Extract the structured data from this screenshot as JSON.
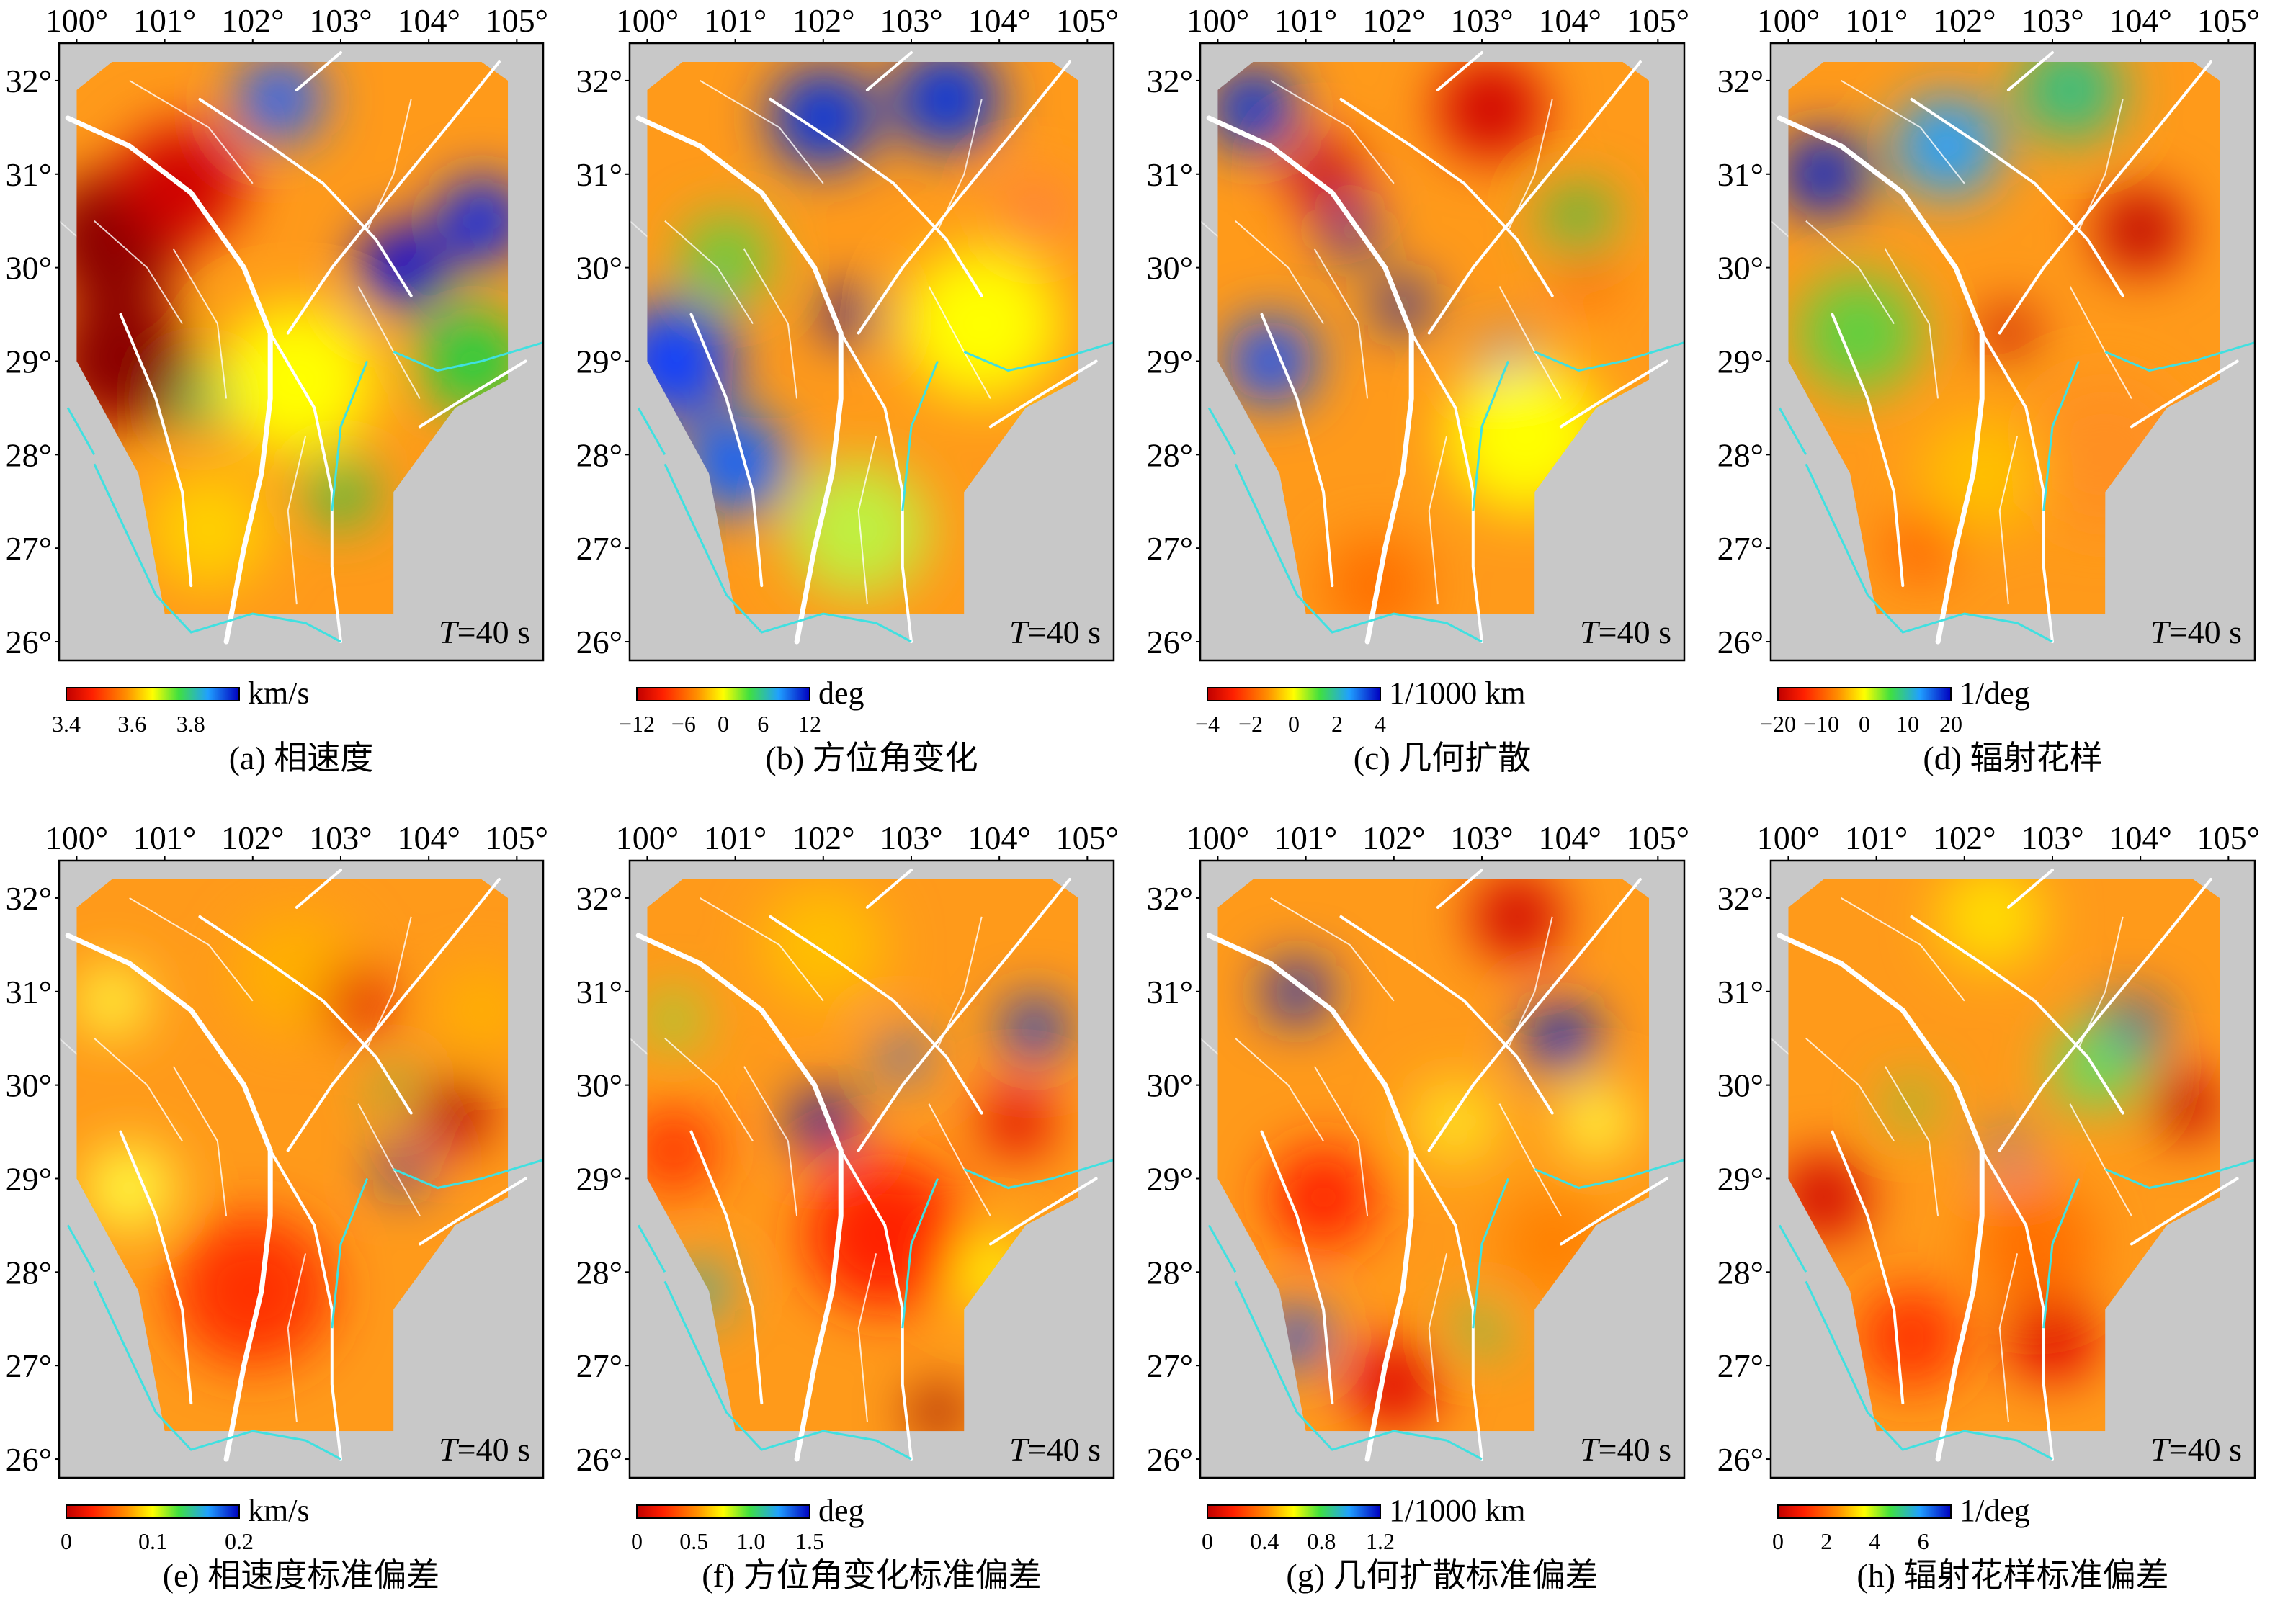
{
  "figure": {
    "panels": [
      {
        "id": "a",
        "caption": "(a) 相速度",
        "period_label": "T=40 s",
        "period_symbol": "T",
        "period_value": "=40 s",
        "colorbar": {
          "unit": "km/s",
          "ticks": [
            "3.4",
            "3.6",
            "3.8"
          ],
          "tick_fracs": [
            0.0,
            0.38,
            0.72
          ],
          "palette": "rainbow"
        },
        "blobs": [
          {
            "lon": 100.4,
            "lat": 30.3,
            "color": "#8b0000",
            "r": 0.8
          },
          {
            "lon": 100.5,
            "lat": 29.0,
            "color": "#8b0000",
            "r": 0.8
          },
          {
            "lon": 101.2,
            "lat": 30.9,
            "color": "#d00000",
            "r": 0.7
          },
          {
            "lon": 103.7,
            "lat": 30.0,
            "color": "#0000e0",
            "r": 0.5
          },
          {
            "lon": 104.6,
            "lat": 30.5,
            "color": "#0020f0",
            "r": 0.5
          },
          {
            "lon": 102.3,
            "lat": 31.8,
            "color": "#2060ff",
            "r": 0.5
          },
          {
            "lon": 104.5,
            "lat": 29.0,
            "color": "#20d040",
            "r": 0.6
          },
          {
            "lon": 102.5,
            "lat": 28.8,
            "color": "#ffff00",
            "r": 0.9
          },
          {
            "lon": 101.4,
            "lat": 28.6,
            "color": "#30c060",
            "r": 0.3
          },
          {
            "lon": 103.0,
            "lat": 27.6,
            "color": "#40c040",
            "r": 0.4
          },
          {
            "lon": 101.5,
            "lat": 27.2,
            "color": "#ffd000",
            "r": 0.7
          }
        ]
      },
      {
        "id": "b",
        "caption": "(b) 方位角变化",
        "period_label": "T=40 s",
        "period_symbol": "T",
        "period_value": "=40 s",
        "colorbar": {
          "unit": "deg",
          "ticks": [
            "−12",
            "−6",
            "0",
            "6",
            "12"
          ],
          "tick_fracs": [
            0.0,
            0.27,
            0.5,
            0.73,
            1.0
          ],
          "palette": "rainbow"
        },
        "blobs": [
          {
            "lon": 100.9,
            "lat": 30.1,
            "color": "#60d040",
            "r": 0.5
          },
          {
            "lon": 100.3,
            "lat": 29.0,
            "color": "#1040ff",
            "r": 0.7
          },
          {
            "lon": 101.0,
            "lat": 27.9,
            "color": "#1060ff",
            "r": 0.6
          },
          {
            "lon": 102.0,
            "lat": 31.6,
            "color": "#0030e0",
            "r": 0.6
          },
          {
            "lon": 103.4,
            "lat": 31.8,
            "color": "#0030e0",
            "r": 0.6
          },
          {
            "lon": 102.3,
            "lat": 29.5,
            "color": "#0000b0",
            "r": 0.3
          },
          {
            "lon": 104.4,
            "lat": 30.6,
            "color": "#ff8040",
            "r": 0.4
          },
          {
            "lon": 103.8,
            "lat": 29.4,
            "color": "#ffff00",
            "r": 0.9
          },
          {
            "lon": 102.4,
            "lat": 27.2,
            "color": "#c0f040",
            "r": 0.8
          }
        ]
      },
      {
        "id": "c",
        "caption": "(c) 几何扩散",
        "period_label": "T=40 s",
        "period_symbol": "T",
        "period_value": "=40 s",
        "colorbar": {
          "unit": "1/1000 km",
          "ticks": [
            "−4",
            "−2",
            "0",
            "2",
            "4"
          ],
          "tick_fracs": [
            0.0,
            0.25,
            0.5,
            0.75,
            1.0
          ],
          "palette": "rainbow"
        },
        "blobs": [
          {
            "lon": 100.4,
            "lat": 31.7,
            "color": "#0030e0",
            "r": 0.5
          },
          {
            "lon": 101.2,
            "lat": 31.0,
            "color": "#c00000",
            "r": 0.4
          },
          {
            "lon": 103.1,
            "lat": 31.7,
            "color": "#d00000",
            "r": 0.6
          },
          {
            "lon": 101.5,
            "lat": 30.4,
            "color": "#0020c0",
            "r": 0.3
          },
          {
            "lon": 102.1,
            "lat": 29.6,
            "color": "#0020c0",
            "r": 0.3
          },
          {
            "lon": 100.6,
            "lat": 29.0,
            "color": "#1050ff",
            "r": 0.5
          },
          {
            "lon": 103.3,
            "lat": 29.0,
            "color": "#2060ff",
            "r": 0.3
          },
          {
            "lon": 104.1,
            "lat": 30.5,
            "color": "#40c040",
            "r": 0.4
          },
          {
            "lon": 104.2,
            "lat": 29.9,
            "color": "#ff6000",
            "r": 0.3
          },
          {
            "lon": 101.8,
            "lat": 26.6,
            "color": "#ff7000",
            "r": 0.6
          },
          {
            "lon": 103.5,
            "lat": 28.2,
            "color": "#ffff00",
            "r": 0.9
          }
        ]
      },
      {
        "id": "d",
        "caption": "(d) 辐射花样",
        "period_label": "T=40 s",
        "period_symbol": "T",
        "period_value": "=40 s",
        "colorbar": {
          "unit": "1/deg",
          "ticks": [
            "−20",
            "−10",
            "0",
            "10",
            "20"
          ],
          "tick_fracs": [
            0.0,
            0.25,
            0.5,
            0.75,
            1.0
          ],
          "palette": "rainbow"
        },
        "blobs": [
          {
            "lon": 100.4,
            "lat": 31.0,
            "color": "#0020d0",
            "r": 0.5
          },
          {
            "lon": 101.8,
            "lat": 31.3,
            "color": "#20a0ff",
            "r": 0.6
          },
          {
            "lon": 103.2,
            "lat": 31.9,
            "color": "#30c080",
            "r": 0.6
          },
          {
            "lon": 104.0,
            "lat": 30.4,
            "color": "#c00000",
            "r": 0.5
          },
          {
            "lon": 102.5,
            "lat": 29.3,
            "color": "#c00000",
            "r": 0.3
          },
          {
            "lon": 100.8,
            "lat": 29.3,
            "color": "#60d040",
            "r": 0.7
          },
          {
            "lon": 101.5,
            "lat": 27.0,
            "color": "#ff6000",
            "r": 0.4
          },
          {
            "lon": 103.6,
            "lat": 28.0,
            "color": "#ff9020",
            "r": 0.9
          },
          {
            "lon": 102.2,
            "lat": 27.8,
            "color": "#ffc000",
            "r": 0.7
          }
        ]
      },
      {
        "id": "e",
        "caption": "(e) 相速度标准偏差",
        "period_label": "T=40 s",
        "period_symbol": "T",
        "period_value": "=40 s",
        "colorbar": {
          "unit": "km/s",
          "ticks": [
            "0",
            "0.1",
            "0.2"
          ],
          "tick_fracs": [
            0.0,
            0.5,
            1.0
          ],
          "palette": "rainbow"
        },
        "blobs": [
          {
            "lon": 103.6,
            "lat": 30.0,
            "color": "#20c060",
            "r": 0.2
          },
          {
            "lon": 103.7,
            "lat": 29.1,
            "color": "#0020d0",
            "r": 0.25
          },
          {
            "lon": 100.4,
            "lat": 30.9,
            "color": "#ffff40",
            "r": 0.4
          },
          {
            "lon": 100.6,
            "lat": 28.9,
            "color": "#ffff40",
            "r": 0.5
          },
          {
            "lon": 102.5,
            "lat": 31.2,
            "color": "#ffb000",
            "r": 0.7
          },
          {
            "lon": 104.6,
            "lat": 30.8,
            "color": "#ffb000",
            "r": 0.5
          },
          {
            "lon": 102.0,
            "lat": 27.8,
            "color": "#ff3000",
            "r": 0.9
          },
          {
            "lon": 104.3,
            "lat": 29.7,
            "color": "#b00000",
            "r": 0.4
          },
          {
            "lon": 103.2,
            "lat": 30.9,
            "color": "#e00000",
            "r": 0.4
          }
        ]
      },
      {
        "id": "f",
        "caption": "(f) 方位角变化标准偏差",
        "period_label": "T=40 s",
        "period_symbol": "T",
        "period_value": "=40 s",
        "colorbar": {
          "unit": "deg",
          "ticks": [
            "0",
            "0.5",
            "1.0",
            "1.5"
          ],
          "tick_fracs": [
            0.0,
            0.33,
            0.66,
            1.0
          ],
          "palette": "rainbow"
        },
        "blobs": [
          {
            "lon": 102.0,
            "lat": 29.6,
            "color": "#0000c0",
            "r": 0.35
          },
          {
            "lon": 102.9,
            "lat": 30.3,
            "color": "#2060ff",
            "r": 0.25
          },
          {
            "lon": 104.4,
            "lat": 30.6,
            "color": "#0030e0",
            "r": 0.35
          },
          {
            "lon": 100.3,
            "lat": 30.7,
            "color": "#80e040",
            "r": 0.3
          },
          {
            "lon": 100.6,
            "lat": 27.8,
            "color": "#20b0c0",
            "r": 0.3
          },
          {
            "lon": 102.0,
            "lat": 31.5,
            "color": "#ffc000",
            "r": 0.7
          },
          {
            "lon": 100.3,
            "lat": 29.3,
            "color": "#ff3000",
            "r": 0.5
          },
          {
            "lon": 102.7,
            "lat": 28.4,
            "color": "#ff2000",
            "r": 0.9
          },
          {
            "lon": 104.2,
            "lat": 29.6,
            "color": "#e00000",
            "r": 0.4
          },
          {
            "lon": 103.3,
            "lat": 26.5,
            "color": "#900000",
            "r": 0.3
          },
          {
            "lon": 103.9,
            "lat": 28.0,
            "color": "#ffff00",
            "r": 0.4
          }
        ]
      },
      {
        "id": "g",
        "caption": "(g) 几何扩散标准偏差",
        "period_label": "T=40 s",
        "period_symbol": "T",
        "period_value": "=40 s",
        "colorbar": {
          "unit": "1/1000 km",
          "ticks": [
            "0",
            "0.4",
            "0.8",
            "1.2"
          ],
          "tick_fracs": [
            0.0,
            0.33,
            0.66,
            1.0
          ],
          "palette": "rainbow"
        },
        "blobs": [
          {
            "lon": 100.9,
            "lat": 31.0,
            "color": "#0020d0",
            "r": 0.35
          },
          {
            "lon": 103.9,
            "lat": 30.5,
            "color": "#0020d0",
            "r": 0.4
          },
          {
            "lon": 100.9,
            "lat": 27.3,
            "color": "#1050ff",
            "r": 0.35
          },
          {
            "lon": 103.0,
            "lat": 27.4,
            "color": "#40d060",
            "r": 0.25
          },
          {
            "lon": 102.7,
            "lat": 29.6,
            "color": "#ffe020",
            "r": 0.5
          },
          {
            "lon": 104.3,
            "lat": 29.6,
            "color": "#ffff40",
            "r": 0.4
          },
          {
            "lon": 101.2,
            "lat": 28.8,
            "color": "#ff2000",
            "r": 0.6
          },
          {
            "lon": 103.4,
            "lat": 31.8,
            "color": "#d00000",
            "r": 0.5
          },
          {
            "lon": 102.0,
            "lat": 26.8,
            "color": "#e00000",
            "r": 0.5
          },
          {
            "lon": 103.8,
            "lat": 28.3,
            "color": "#ff8000",
            "r": 0.6
          }
        ]
      },
      {
        "id": "h",
        "caption": "(h) 辐射花样标准偏差",
        "period_label": "T=40 s",
        "period_symbol": "T",
        "period_value": "=40 s",
        "colorbar": {
          "unit": "1/deg",
          "ticks": [
            "0",
            "2",
            "4",
            "6"
          ],
          "tick_fracs": [
            0.0,
            0.28,
            0.56,
            0.84
          ],
          "palette": "rainbow"
        },
        "blobs": [
          {
            "lon": 103.9,
            "lat": 30.6,
            "color": "#0020d0",
            "r": 0.35
          },
          {
            "lon": 102.5,
            "lat": 29.3,
            "color": "#1060ff",
            "r": 0.2
          },
          {
            "lon": 101.4,
            "lat": 29.8,
            "color": "#60d040",
            "r": 0.25
          },
          {
            "lon": 103.5,
            "lat": 30.2,
            "color": "#60e060",
            "r": 0.5
          },
          {
            "lon": 102.3,
            "lat": 31.8,
            "color": "#ffe000",
            "r": 0.6
          },
          {
            "lon": 100.4,
            "lat": 28.8,
            "color": "#d00000",
            "r": 0.5
          },
          {
            "lon": 104.5,
            "lat": 29.8,
            "color": "#c00000",
            "r": 0.4
          },
          {
            "lon": 103.0,
            "lat": 27.3,
            "color": "#e00000",
            "r": 0.5
          },
          {
            "lon": 101.4,
            "lat": 27.3,
            "color": "#ff3000",
            "r": 0.6
          },
          {
            "lon": 102.8,
            "lat": 28.3,
            "color": "#ff7000",
            "r": 0.7
          }
        ]
      }
    ],
    "axes": {
      "lon_ticks": [
        "100°",
        "101°",
        "102°",
        "103°",
        "104°",
        "105°"
      ],
      "lon_values": [
        100,
        101,
        102,
        103,
        104,
        105
      ],
      "lat_ticks": [
        "32°",
        "31°",
        "30°",
        "29°",
        "28°",
        "27°",
        "26°"
      ],
      "lat_values": [
        32,
        31,
        30,
        29,
        28,
        27,
        26
      ],
      "lon_range": [
        99.8,
        105.3
      ],
      "lat_range": [
        25.8,
        32.4
      ]
    },
    "colors": {
      "land": "#c8c8c8",
      "fault": "#ffffff",
      "river": "#40e0e0",
      "frame": "#000000",
      "base_field": "#ff9a1a"
    }
  }
}
